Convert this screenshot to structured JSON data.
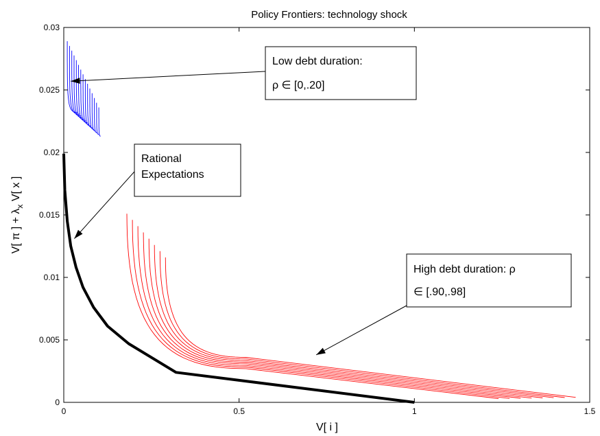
{
  "chart_data": {
    "type": "line",
    "title": "Policy Frontiers: technology shock",
    "xlabel": "V[ i ]",
    "ylabel": {
      "prefix": "V[ π ] + λ",
      "sub": "x",
      "suffix": " V[ x ]"
    },
    "xlim": [
      0,
      1.5
    ],
    "ylim": [
      0,
      0.03
    ],
    "xticks": [
      0,
      0.5,
      1,
      1.5
    ],
    "xtick_labels": [
      "0",
      "0.5",
      "1",
      "1.5"
    ],
    "yticks": [
      0,
      0.005,
      0.01,
      0.015,
      0.02,
      0.025,
      0.03
    ],
    "ytick_labels": [
      "0",
      "0.005",
      "0.01",
      "0.015",
      "0.02",
      "0.025",
      "0.03"
    ],
    "grid": false,
    "colors": {
      "rational": "#000000",
      "low": "#0000ff",
      "high": "#ff0000"
    },
    "series": [
      {
        "group": "rational",
        "x": [
          0.0,
          0.003,
          0.01,
          0.02,
          0.035,
          0.055,
          0.085,
          0.125,
          0.185,
          0.32,
          1.0
        ],
        "y": [
          0.0199,
          0.017,
          0.0145,
          0.0125,
          0.0108,
          0.0092,
          0.0076,
          0.0061,
          0.0047,
          0.0024,
          0.0
        ]
      }
    ],
    "low_family": {
      "group": "low",
      "count": 15,
      "start_x": [
        0.01,
        0.1
      ],
      "start_y": [
        0.0289,
        0.0236
      ],
      "end_x": [
        0.04,
        0.105
      ],
      "end_y": [
        0.0232,
        0.0213
      ]
    },
    "high_family": {
      "group": "high",
      "count": 8,
      "start_x": [
        0.18,
        0.29
      ],
      "start_y": [
        0.0151,
        0.0116
      ],
      "kink_x": 0.52,
      "kink_y": [
        0.0027,
        0.0036
      ],
      "end_x": [
        1.24,
        1.46
      ],
      "end_y": [
        0.0003,
        0.0004
      ]
    },
    "annotations": [
      {
        "id": "low",
        "lines": [
          "Low debt duration:",
          "ρ ∈  [0,.20]"
        ],
        "arrow_to": [
          0.02,
          0.0257
        ]
      },
      {
        "id": "rational",
        "lines": [
          "Rational",
          "Expectations"
        ],
        "arrow_to": [
          0.03,
          0.0131
        ]
      },
      {
        "id": "high",
        "lines": [
          "High debt duration:     ρ",
          "∈  [.90,.98]"
        ],
        "arrow_to": [
          0.72,
          0.0038
        ]
      }
    ]
  }
}
